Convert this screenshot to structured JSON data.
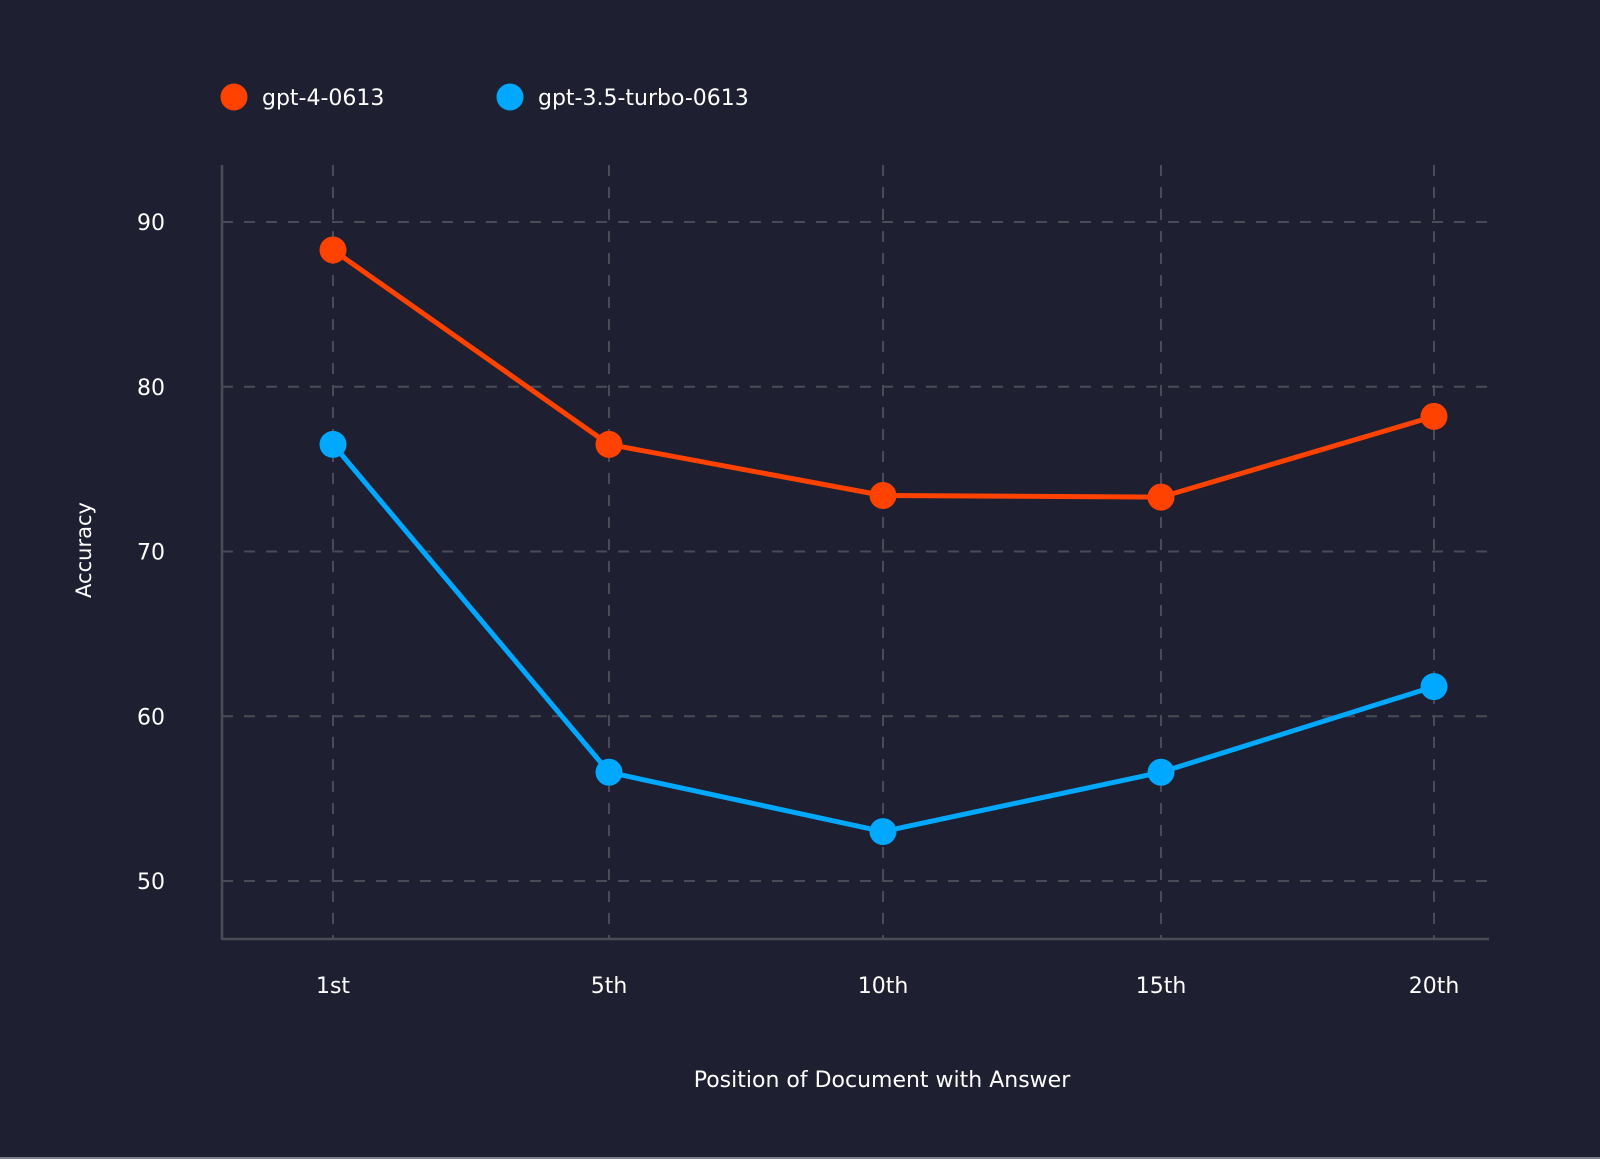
{
  "chart_data": {
    "type": "line",
    "title": "",
    "xlabel": "Position of Document with Answer",
    "ylabel": "Accuracy",
    "categories": [
      "1st",
      "5th",
      "10th",
      "15th",
      "20th"
    ],
    "yticks": [
      50,
      60,
      70,
      80,
      90
    ],
    "ylim": [
      46.5,
      93.5
    ],
    "grid": true,
    "legend_position": "top-left",
    "series": [
      {
        "name": "gpt-4-0613",
        "color": "#ff4200",
        "values": [
          88.3,
          76.5,
          73.4,
          73.3,
          78.2
        ]
      },
      {
        "name": "gpt-3.5-turbo-0613",
        "color": "#00a8ff",
        "values": [
          76.5,
          56.6,
          53.0,
          56.6,
          61.8
        ]
      }
    ]
  },
  "colors": {
    "background": "#1e1f31",
    "grid": "#4a4b56",
    "axis": "#4a4b56",
    "text": "#ffffff"
  }
}
